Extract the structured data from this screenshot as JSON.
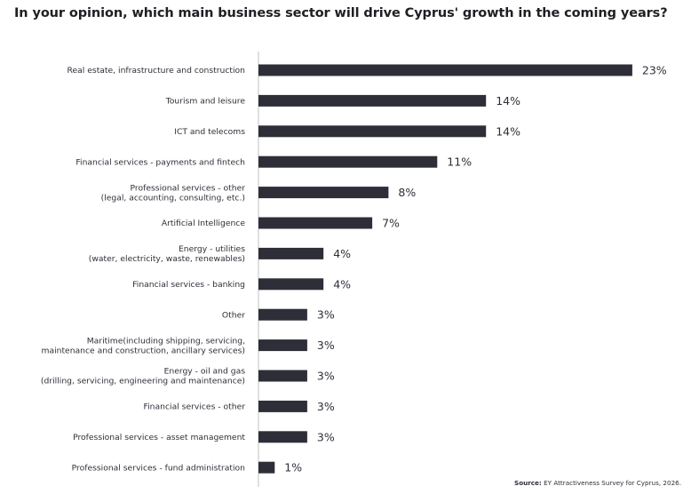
{
  "chart_data": {
    "type": "bar",
    "orientation": "horizontal",
    "title": "In your opinion, which main business sector will drive Cyprus' growth in the coming years?",
    "categories": [
      [
        "Real estate, infrastructure and construction"
      ],
      [
        "Tourism and leisure"
      ],
      [
        "ICT and telecoms"
      ],
      [
        "Financial services - payments and fintech"
      ],
      [
        "Professional services - other",
        "(legal, accounting, consulting, etc.)"
      ],
      [
        "Artificial Intelligence"
      ],
      [
        "Energy - utilities",
        "(water, electricity, waste, renewables)"
      ],
      [
        "Financial services - banking"
      ],
      [
        "Other"
      ],
      [
        "Maritime(including shipping, servicing,",
        "maintenance and construction, ancillary services)"
      ],
      [
        "Energy - oil and gas",
        "(drilling, servicing, engineering and maintenance)"
      ],
      [
        "Financial services - other"
      ],
      [
        "Professional services - asset management"
      ],
      [
        "Professional services - fund administration"
      ]
    ],
    "values": [
      23,
      14,
      14,
      11,
      8,
      7,
      4,
      4,
      3,
      3,
      3,
      3,
      3,
      1
    ],
    "value_labels": [
      "23%",
      "14%",
      "14%",
      "11%",
      "8%",
      "7%",
      "4%",
      "4%",
      "3%",
      "3%",
      "3%",
      "3%",
      "3%",
      "1%"
    ],
    "bar_color": "#2e2e38",
    "axis_color": "#cccccc",
    "grid": false,
    "legend": "none"
  },
  "source": {
    "label": "Source:",
    "text": "EY Attractiveness Survey for Cyprus, 2026."
  }
}
